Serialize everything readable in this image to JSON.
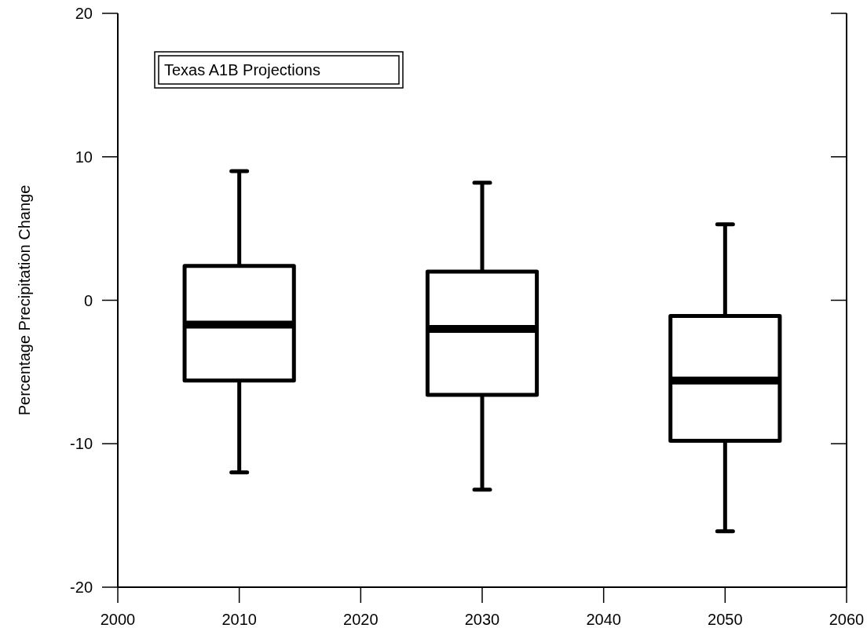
{
  "chart_data": {
    "type": "box",
    "categories": [
      "2000",
      "2010",
      "2020",
      "2030",
      "2040",
      "2050",
      "2060"
    ],
    "color": "#ffffff",
    "boxes": [
      null,
      {
        "low": -12.0,
        "q1": -5.6,
        "median": -1.7,
        "q3": 2.4,
        "high": 9.0
      },
      null,
      {
        "low": -13.2,
        "q1": -6.6,
        "median": -2.0,
        "q3": 2.0,
        "high": 8.2
      },
      null,
      {
        "low": -16.1,
        "q1": -9.8,
        "median": -5.6,
        "q3": -1.1,
        "high": 5.3
      },
      null
    ],
    "ylabel": "Percentage Precipitation Change",
    "ylim": [
      -20,
      20
    ],
    "yticks": [
      -20,
      -10,
      0,
      10,
      20
    ],
    "annotations": [
      "Texas A1B Projections"
    ],
    "grid": false
  }
}
